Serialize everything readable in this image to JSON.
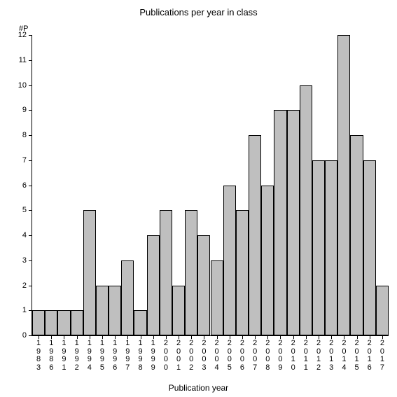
{
  "chart": {
    "type": "bar",
    "title": "Publications per year in class",
    "title_fontsize": 13,
    "xlabel": "Publication year",
    "ylabel": "#P",
    "label_fontsize": 12,
    "tick_fontsize": 11,
    "background_color": "#ffffff",
    "axis_color": "#000000",
    "bar_color": "#bfbfbf",
    "bar_border_color": "#000000",
    "bar_width": 1.0,
    "ylim": [
      0,
      12
    ],
    "ytick_step": 1,
    "y_ticks": [
      0,
      1,
      2,
      3,
      4,
      5,
      6,
      7,
      8,
      9,
      10,
      11,
      12
    ],
    "categories": [
      "1983",
      "1986",
      "1991",
      "1992",
      "1994",
      "1995",
      "1996",
      "1997",
      "1998",
      "1999",
      "2000",
      "2001",
      "2002",
      "2003",
      "2004",
      "2005",
      "2006",
      "2007",
      "2008",
      "2009",
      "2010",
      "2011",
      "2012",
      "2013",
      "2014",
      "2015",
      "2016",
      "2017"
    ],
    "values": [
      1,
      1,
      1,
      1,
      5,
      2,
      2,
      3,
      1,
      4,
      5,
      2,
      5,
      4,
      3,
      6,
      5,
      8,
      6,
      9,
      9,
      10,
      7,
      7,
      12,
      8,
      7,
      2
    ]
  }
}
